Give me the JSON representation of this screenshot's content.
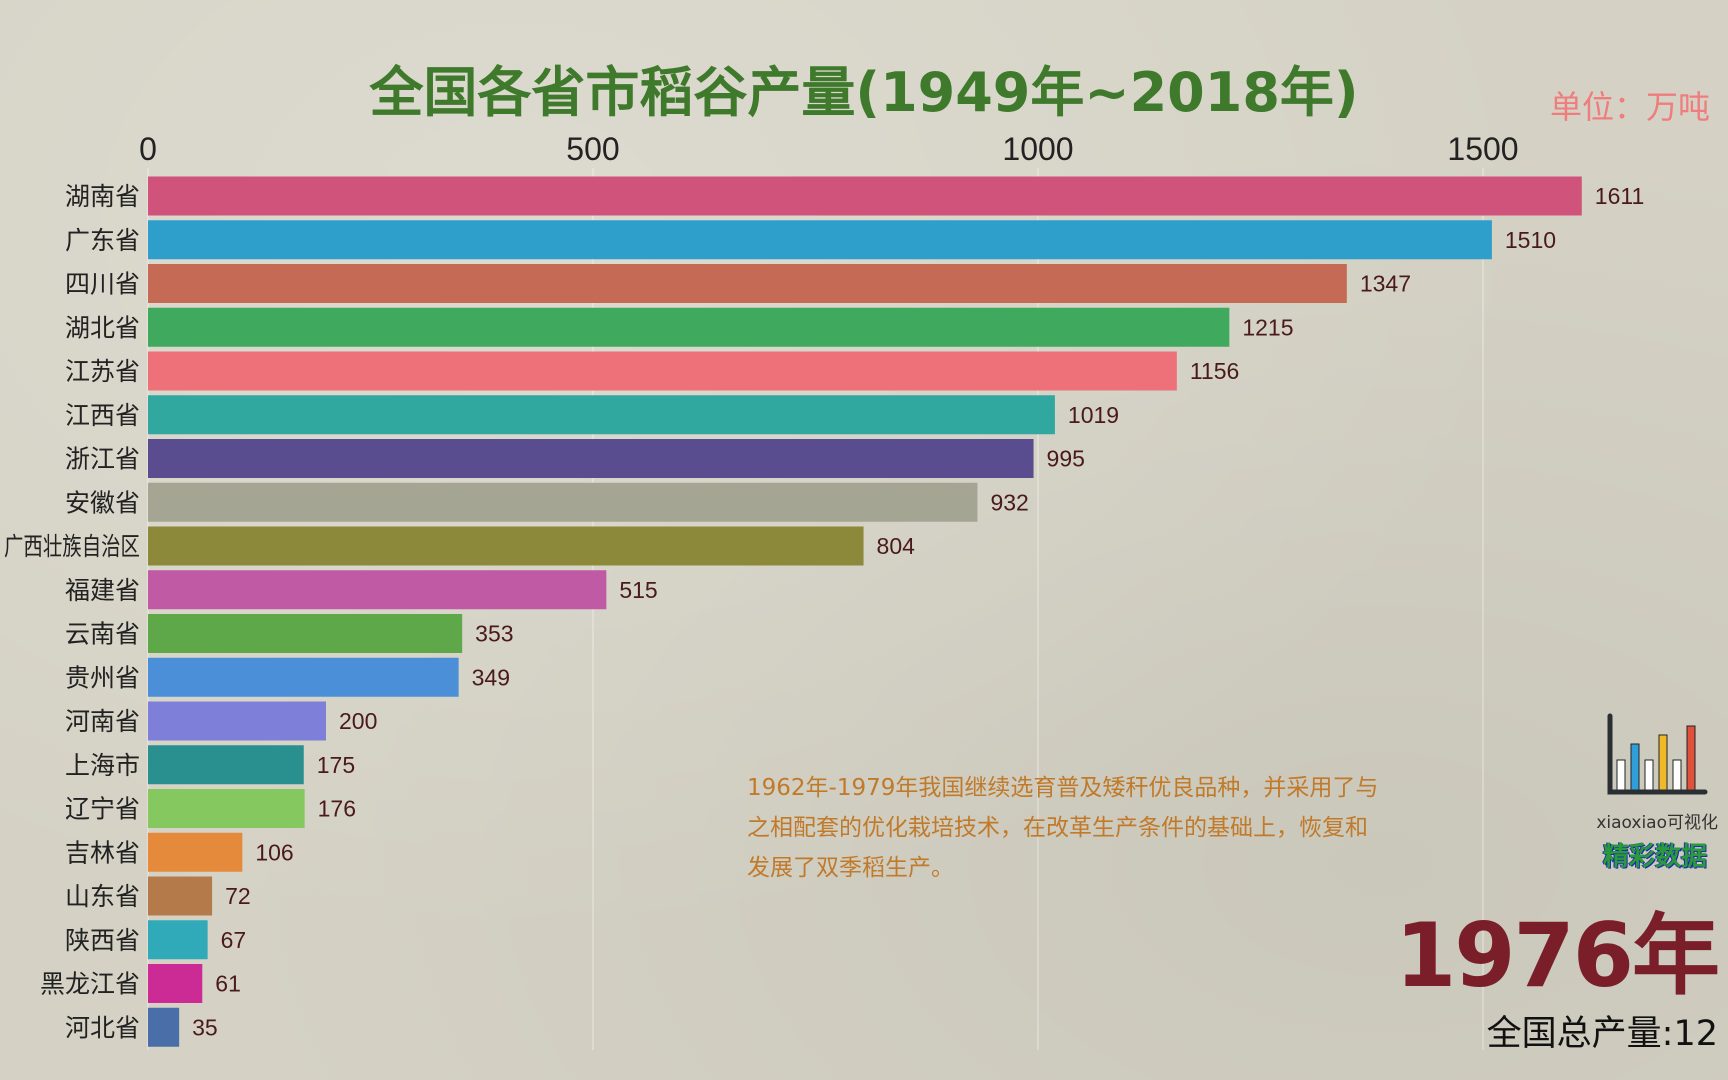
{
  "chart_data": {
    "type": "bar",
    "orientation": "horizontal",
    "title": "全国各省市稻谷产量(1949年~2018年)",
    "unit": "单位：万吨",
    "xlim": [
      0,
      1611
    ],
    "xticks": [
      0,
      500,
      1000,
      1500
    ],
    "xaxis_position": "top",
    "grid": true,
    "categories": [
      "湖南省",
      "广东省",
      "四川省",
      "湖北省",
      "江苏省",
      "江西省",
      "浙江省",
      "安徽省",
      "广西壮族自治区",
      "福建省",
      "云南省",
      "贵州省",
      "河南省",
      "上海市",
      "辽宁省",
      "吉林省",
      "山东省",
      "陕西省",
      "黑龙江省",
      "河北省"
    ],
    "values": [
      1611,
      1510,
      1347,
      1215,
      1156,
      1019,
      995,
      932,
      804,
      515,
      353,
      349,
      200,
      175,
      176,
      106,
      72,
      67,
      61,
      35
    ],
    "colors": [
      "#cf537a",
      "#2e9fcb",
      "#c46a55",
      "#3faa5e",
      "#ee717a",
      "#31a89f",
      "#5a4d8f",
      "#a5a594",
      "#8c8a3a",
      "#c05aa5",
      "#5fa84a",
      "#4a8fd8",
      "#7d7fd9",
      "#2a8f8f",
      "#86c860",
      "#e58a3a",
      "#b57a4a",
      "#30aab8",
      "#cc2a94",
      "#4a6fa8"
    ]
  },
  "annotation": "1962年-1979年我国继续选育普及矮秆优良品种，并采用了与之相配套的优化栽培技术，在改革生产条件的基础上，恢复和发展了双季稻生产。",
  "brand": {
    "name": "xiaoxiao可视化",
    "tagline": "精彩数据",
    "logo_colors": [
      "#ffffff",
      "#2e9fd8",
      "#ffffff",
      "#f0b92a",
      "#ffffff",
      "#e0503a"
    ]
  },
  "year": "1976年",
  "total": {
    "label": "全国总产量:",
    "value": "12"
  }
}
